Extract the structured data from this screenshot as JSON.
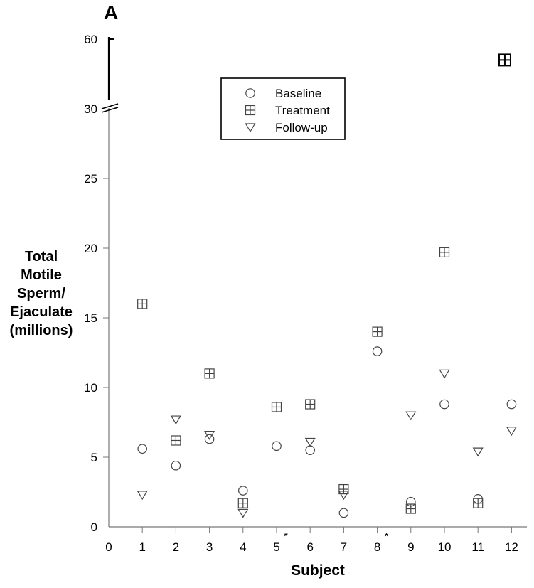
{
  "panel_label": "A",
  "chart_data": {
    "type": "scatter",
    "xlabel": "Subject",
    "ylabel_lines": [
      "Total",
      "Motile",
      "Sperm/",
      "Ejaculate",
      "(millions)"
    ],
    "x_ticks": [
      "0",
      "1",
      "2",
      "3",
      "4",
      "5",
      "6",
      "7",
      "8",
      "9",
      "10",
      "11",
      "12"
    ],
    "y_ticks_lower": [
      "0",
      "5",
      "10",
      "15",
      "20",
      "25",
      "30"
    ],
    "y_tick_upper": "60",
    "xlim": [
      0,
      12.5
    ],
    "ylim_lower": [
      0,
      30
    ],
    "ylim_upper": [
      30,
      60
    ],
    "axis_break": true,
    "legend_position": "top-center",
    "annotations": [
      {
        "x": 5,
        "text": "*"
      },
      {
        "x": 8,
        "text": "*"
      }
    ],
    "series": [
      {
        "name": "Baseline",
        "marker": "circle",
        "points": [
          {
            "x": 1,
            "y": 5.6
          },
          {
            "x": 2,
            "y": 4.4
          },
          {
            "x": 3,
            "y": 6.3
          },
          {
            "x": 4,
            "y": 2.6
          },
          {
            "x": 5,
            "y": 5.8
          },
          {
            "x": 6,
            "y": 5.5
          },
          {
            "x": 7,
            "y": 1.0
          },
          {
            "x": 8,
            "y": 12.6
          },
          {
            "x": 9,
            "y": 1.8
          },
          {
            "x": 10,
            "y": 8.8
          },
          {
            "x": 11,
            "y": 2.0
          },
          {
            "x": 12,
            "y": 8.8
          }
        ]
      },
      {
        "name": "Treatment",
        "marker": "square-cross",
        "points": [
          {
            "x": 1,
            "y": 16.0
          },
          {
            "x": 2,
            "y": 6.2
          },
          {
            "x": 3,
            "y": 11.0
          },
          {
            "x": 4,
            "y": 1.7
          },
          {
            "x": 5,
            "y": 8.6
          },
          {
            "x": 6,
            "y": 8.8
          },
          {
            "x": 7,
            "y": 2.7
          },
          {
            "x": 8,
            "y": 14.0
          },
          {
            "x": 9,
            "y": 1.3
          },
          {
            "x": 10,
            "y": 19.7
          },
          {
            "x": 11,
            "y": 1.7
          },
          {
            "x": 11.8,
            "y": 51
          }
        ]
      },
      {
        "name": "Follow-up",
        "marker": "triangle-down",
        "points": [
          {
            "x": 1,
            "y": 2.3
          },
          {
            "x": 2,
            "y": 7.7
          },
          {
            "x": 3,
            "y": 6.6
          },
          {
            "x": 4,
            "y": 1.0
          },
          {
            "x": 6,
            "y": 6.1
          },
          {
            "x": 7,
            "y": 2.3
          },
          {
            "x": 9,
            "y": 8.0
          },
          {
            "x": 10,
            "y": 11.0
          },
          {
            "x": 11,
            "y": 5.4
          },
          {
            "x": 12,
            "y": 6.9
          }
        ]
      }
    ]
  }
}
